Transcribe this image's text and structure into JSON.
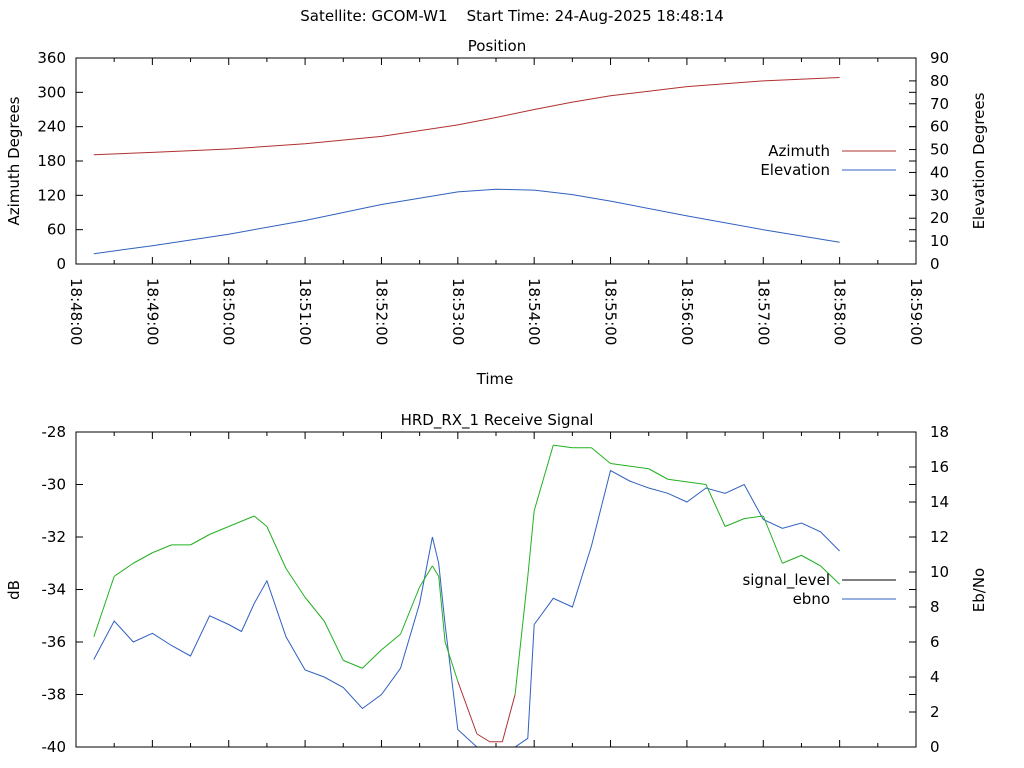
{
  "header": {
    "satellite_label": "Satellite: GCOM-W1",
    "start_label": "Start Time: 24-Aug-2025 18:48:14"
  },
  "colors": {
    "azimuth": "#b03030",
    "elevation": "#3060c0",
    "signal_level": "#000000",
    "signal_low": "#b03030",
    "signal_high": "#22b022",
    "ebno": "#3060c0",
    "axis": "#000000"
  },
  "chart_data": [
    {
      "type": "line",
      "title": "Position",
      "xlabel": "Time",
      "ylabel": "Azimuth Degrees",
      "y2label": "Elevation Degrees",
      "xlim": [
        "18:48:00",
        "18:59:00"
      ],
      "ylim": [
        0,
        360
      ],
      "y2lim": [
        0,
        90
      ],
      "x_ticks": [
        "18:48:00",
        "18:49:00",
        "18:50:00",
        "18:51:00",
        "18:52:00",
        "18:53:00",
        "18:54:00",
        "18:55:00",
        "18:56:00",
        "18:57:00",
        "18:58:00",
        "18:59:00"
      ],
      "y_ticks": [
        0,
        60,
        120,
        180,
        240,
        300,
        360
      ],
      "y2_ticks": [
        0,
        10,
        20,
        30,
        40,
        50,
        60,
        70,
        80,
        90
      ],
      "legend_position": "right",
      "series": [
        {
          "name": "Azimuth",
          "axis": "left",
          "x": [
            "18:48:14",
            "18:49:00",
            "18:50:00",
            "18:51:00",
            "18:52:00",
            "18:53:00",
            "18:53:30",
            "18:54:00",
            "18:54:30",
            "18:55:00",
            "18:56:00",
            "18:57:00",
            "18:58:00"
          ],
          "y": [
            191,
            195,
            201,
            210,
            223,
            243,
            256,
            270,
            283,
            294,
            310,
            320,
            326
          ]
        },
        {
          "name": "Elevation",
          "axis": "right",
          "x": [
            "18:48:14",
            "18:49:00",
            "18:50:00",
            "18:51:00",
            "18:52:00",
            "18:53:00",
            "18:53:30",
            "18:54:00",
            "18:54:30",
            "18:55:00",
            "18:56:00",
            "18:57:00",
            "18:58:00"
          ],
          "y": [
            4.5,
            8,
            13,
            19,
            26,
            31.5,
            32.7,
            32.3,
            30.3,
            27.5,
            21,
            15,
            9.5
          ]
        }
      ]
    },
    {
      "type": "line",
      "title": "HRD_RX_1 Receive Signal",
      "xlabel": "",
      "ylabel": "dB",
      "y2label": "Eb/No",
      "xlim": [
        "18:48:00",
        "18:59:00"
      ],
      "ylim": [
        -40,
        -28
      ],
      "y2lim": [
        0,
        18
      ],
      "y_ticks": [
        -40,
        -38,
        -36,
        -34,
        -32,
        -30,
        -28
      ],
      "y2_ticks": [
        0,
        2,
        4,
        6,
        8,
        10,
        12,
        14,
        16,
        18
      ],
      "legend_position": "right",
      "series": [
        {
          "name": "signal_level",
          "axis": "left",
          "x": [
            "18:48:14",
            "18:48:30",
            "18:48:45",
            "18:49:00",
            "18:49:15",
            "18:49:30",
            "18:49:45",
            "18:50:00",
            "18:50:10",
            "18:50:20",
            "18:50:30",
            "18:50:45",
            "18:51:00",
            "18:51:15",
            "18:51:30",
            "18:51:45",
            "18:52:00",
            "18:52:15",
            "18:52:30",
            "18:52:40",
            "18:52:45",
            "18:52:50",
            "18:53:00",
            "18:53:15",
            "18:53:25",
            "18:53:35",
            "18:53:45",
            "18:53:55",
            "18:54:00",
            "18:54:15",
            "18:54:30",
            "18:54:45",
            "18:55:00",
            "18:55:15",
            "18:55:30",
            "18:55:45",
            "18:56:00",
            "18:56:15",
            "18:56:30",
            "18:56:45",
            "18:57:00",
            "18:57:15",
            "18:57:30",
            "18:57:45",
            "18:58:00"
          ],
          "y": [
            -35.8,
            -33.5,
            -33.0,
            -32.6,
            -32.3,
            -32.3,
            -31.9,
            -31.6,
            -31.4,
            -31.2,
            -31.6,
            -33.2,
            -34.3,
            -35.2,
            -36.7,
            -37.0,
            -36.3,
            -35.7,
            -33.9,
            -33.1,
            -33.5,
            -36.0,
            -37.5,
            -39.5,
            -39.8,
            -39.8,
            -38.0,
            -33.5,
            -31.0,
            -28.5,
            -28.6,
            -28.6,
            -29.2,
            -29.3,
            -29.4,
            -29.8,
            -29.9,
            -30.0,
            -31.6,
            -31.3,
            -31.2,
            -33.0,
            -32.7,
            -33.1,
            -33.8
          ]
        },
        {
          "name": "ebno",
          "axis": "right",
          "x": [
            "18:48:14",
            "18:48:30",
            "18:48:45",
            "18:49:00",
            "18:49:15",
            "18:49:30",
            "18:49:45",
            "18:50:00",
            "18:50:10",
            "18:50:20",
            "18:50:30",
            "18:50:45",
            "18:51:00",
            "18:51:15",
            "18:51:30",
            "18:51:45",
            "18:52:00",
            "18:52:15",
            "18:52:30",
            "18:52:40",
            "18:52:45",
            "18:52:50",
            "18:53:00",
            "18:53:15",
            "18:53:25",
            "18:53:35",
            "18:53:45",
            "18:53:55",
            "18:54:00",
            "18:54:15",
            "18:54:30",
            "18:54:45",
            "18:55:00",
            "18:55:15",
            "18:55:30",
            "18:55:45",
            "18:56:00",
            "18:56:15",
            "18:56:30",
            "18:56:45",
            "18:57:00",
            "18:57:15",
            "18:57:30",
            "18:57:45",
            "18:58:00"
          ],
          "y": [
            5.0,
            7.2,
            6.0,
            6.5,
            5.8,
            5.2,
            7.5,
            7.0,
            6.6,
            8.2,
            9.5,
            6.3,
            4.4,
            4.0,
            3.4,
            2.2,
            3.0,
            4.5,
            8.2,
            12.0,
            10.5,
            7.0,
            1.0,
            0.0,
            0.0,
            0.0,
            0.0,
            0.5,
            7.0,
            8.5,
            8.0,
            11.5,
            15.8,
            15.2,
            14.8,
            14.5,
            14.0,
            14.8,
            14.5,
            15.0,
            13.0,
            12.5,
            12.8,
            12.3,
            11.2
          ]
        }
      ]
    }
  ]
}
